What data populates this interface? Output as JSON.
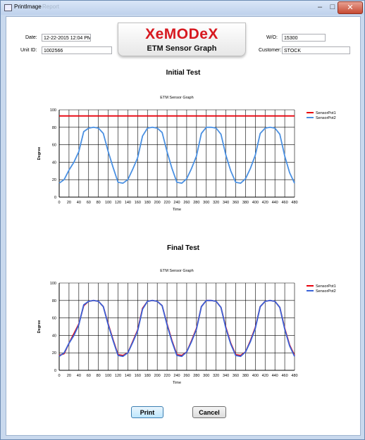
{
  "window": {
    "title": "PrintImage",
    "title_ghost": "Report"
  },
  "header": {
    "date_label": "Date:",
    "date_value": "12-22-2015 12:04 PM",
    "unit_label": "Unit ID:",
    "unit_value": "1002566",
    "wo_label": "W/O:",
    "wo_value": "15300",
    "customer_label": "Customer:",
    "customer_value": "STOCK",
    "logo_text": "XeMODeX",
    "logo_subtitle": "ETM Sensor Graph"
  },
  "sections": {
    "initial": "Initial Test",
    "final": "Final Test"
  },
  "buttons": {
    "print": "Print",
    "cancel": "Cancel"
  },
  "colors": {
    "sensor1": "#e8000b",
    "sensor2": "#4a90e2",
    "sensor2_final": "#3a63d8"
  },
  "chart_data": [
    {
      "type": "line",
      "title": "ETM Sensor Graph",
      "xlabel": "Time",
      "ylabel": "Degree",
      "xlim": [
        0,
        480
      ],
      "ylim": [
        0,
        100
      ],
      "xticks": [
        0,
        20,
        40,
        60,
        80,
        100,
        120,
        140,
        160,
        180,
        200,
        220,
        240,
        260,
        280,
        300,
        320,
        340,
        360,
        380,
        400,
        420,
        440,
        460,
        480
      ],
      "yticks": [
        0,
        20,
        40,
        60,
        80,
        100
      ],
      "grid": true,
      "legend": "top-right",
      "series": [
        {
          "name": "SensorPot1",
          "color": "#e8000b",
          "x": [
            0,
            480
          ],
          "y": [
            93,
            93
          ]
        },
        {
          "name": "SensorPot2",
          "color": "#4a90e2",
          "x": [
            0,
            10,
            20,
            30,
            40,
            50,
            60,
            70,
            80,
            90,
            100,
            110,
            120,
            130,
            140,
            150,
            160,
            170,
            180,
            190,
            200,
            210,
            220,
            230,
            240,
            250,
            260,
            270,
            280,
            290,
            300,
            310,
            320,
            330,
            340,
            350,
            360,
            370,
            380,
            390,
            400,
            410,
            420,
            430,
            440,
            450,
            460,
            470,
            480
          ],
          "y": [
            16,
            20,
            31,
            40,
            52,
            75,
            79,
            80,
            79,
            73,
            52,
            34,
            17,
            16,
            20,
            32,
            45,
            70,
            79,
            80,
            79,
            74,
            52,
            33,
            17,
            16,
            21,
            33,
            47,
            73,
            80,
            80,
            79,
            72,
            48,
            30,
            17,
            16,
            21,
            33,
            48,
            73,
            79,
            80,
            79,
            72,
            47,
            28,
            16
          ]
        }
      ]
    },
    {
      "type": "line",
      "title": "ETM Sensor Graph",
      "xlabel": "Time",
      "ylabel": "Degree",
      "xlim": [
        0,
        480
      ],
      "ylim": [
        0,
        100
      ],
      "xticks": [
        0,
        20,
        40,
        60,
        80,
        100,
        120,
        140,
        160,
        180,
        200,
        220,
        240,
        260,
        280,
        300,
        320,
        340,
        360,
        380,
        400,
        420,
        440,
        460,
        480
      ],
      "yticks": [
        0,
        20,
        40,
        60,
        80,
        100
      ],
      "grid": true,
      "legend": "top-right",
      "series": [
        {
          "name": "SensorPot1",
          "color": "#e8000b",
          "x": [
            0,
            10,
            20,
            30,
            40,
            50,
            60,
            70,
            80,
            90,
            100,
            110,
            120,
            130,
            140,
            150,
            160,
            170,
            180,
            190,
            200,
            210,
            220,
            230,
            240,
            250,
            260,
            270,
            280,
            290,
            300,
            310,
            320,
            330,
            340,
            350,
            360,
            370,
            380,
            390,
            400,
            410,
            420,
            430,
            440,
            450,
            460,
            470,
            480
          ],
          "y": [
            17,
            19,
            31,
            42,
            53,
            74,
            79,
            80,
            79,
            73,
            53,
            35,
            18,
            17,
            20,
            33,
            46,
            71,
            79,
            80,
            79,
            74,
            53,
            34,
            18,
            17,
            21,
            34,
            48,
            73,
            80,
            80,
            79,
            72,
            49,
            31,
            18,
            17,
            21,
            34,
            49,
            73,
            79,
            80,
            79,
            72,
            48,
            29,
            17
          ]
        },
        {
          "name": "SensorPot2",
          "color": "#3a63d8",
          "x": [
            0,
            10,
            20,
            30,
            40,
            50,
            60,
            70,
            80,
            90,
            100,
            110,
            120,
            130,
            140,
            150,
            160,
            170,
            180,
            190,
            200,
            210,
            220,
            230,
            240,
            250,
            260,
            270,
            280,
            290,
            300,
            310,
            320,
            330,
            340,
            350,
            360,
            370,
            380,
            390,
            400,
            410,
            420,
            430,
            440,
            450,
            460,
            470,
            480
          ],
          "y": [
            16,
            20,
            31,
            40,
            52,
            75,
            79,
            80,
            79,
            73,
            52,
            34,
            17,
            16,
            20,
            32,
            45,
            70,
            79,
            80,
            79,
            74,
            52,
            33,
            17,
            16,
            21,
            33,
            47,
            73,
            80,
            80,
            79,
            72,
            48,
            30,
            17,
            16,
            21,
            33,
            48,
            73,
            79,
            80,
            79,
            72,
            47,
            28,
            16
          ]
        }
      ]
    }
  ]
}
